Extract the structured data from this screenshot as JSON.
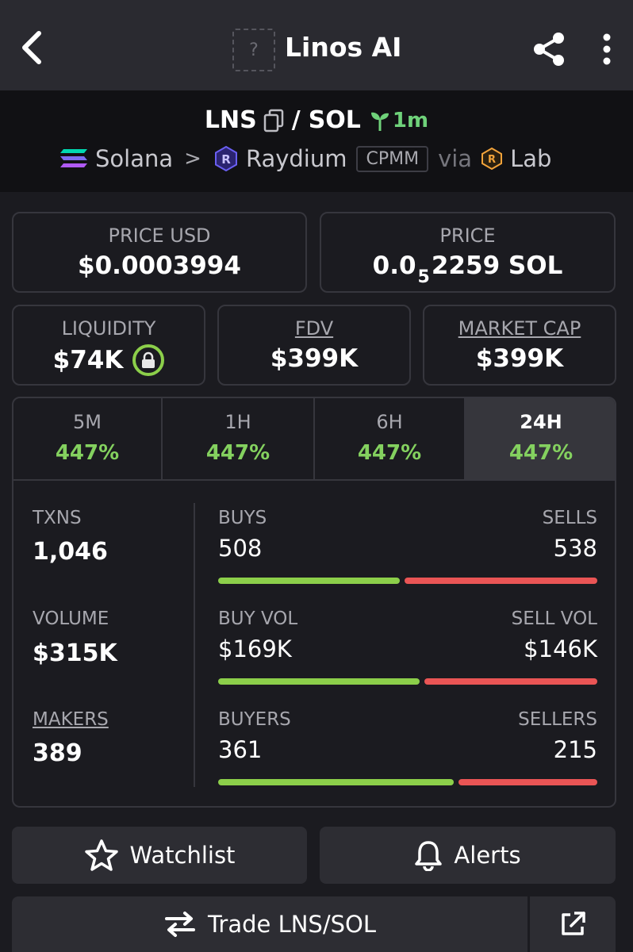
{
  "header": {
    "title": "Linos AI",
    "logo_placeholder": "?"
  },
  "pair": {
    "base": "LNS",
    "quote": "SOL",
    "separator": "/",
    "age": "1m",
    "chain": "Solana",
    "dex": "Raydium",
    "pool_type": "CPMM",
    "via_label": "via",
    "launchpad": "Lab"
  },
  "cards": {
    "price_usd": {
      "label": "PRICE USD",
      "value": "$0.0003994"
    },
    "price": {
      "label": "PRICE",
      "value_prefix": "0.0",
      "value_sub": "5",
      "value_suffix": "2259 SOL"
    },
    "liquidity": {
      "label": "LIQUIDITY",
      "value": "$74K"
    },
    "fdv": {
      "label": "FDV",
      "value": "$399K"
    },
    "market_cap": {
      "label": "MARKET CAP",
      "value": "$399K"
    }
  },
  "tabs": [
    {
      "label": "5M",
      "value": "447%"
    },
    {
      "label": "1H",
      "value": "447%"
    },
    {
      "label": "6H",
      "value": "447%"
    },
    {
      "label": "24H",
      "value": "447%"
    }
  ],
  "stats": {
    "txns": {
      "label": "TXNS",
      "value": "1,046"
    },
    "volume": {
      "label": "VOLUME",
      "value": "$315K"
    },
    "makers": {
      "label": "MAKERS",
      "value": "389"
    },
    "buys": {
      "buy_label": "BUYS",
      "sell_label": "SELLS",
      "buy_value": "508",
      "sell_value": "538",
      "buy_share": 0.486
    },
    "vol": {
      "buy_label": "BUY VOL",
      "sell_label": "SELL VOL",
      "buy_value": "$169K",
      "sell_value": "$146K",
      "buy_share": 0.537
    },
    "traders": {
      "buy_label": "BUYERS",
      "sell_label": "SELLERS",
      "buy_value": "361",
      "sell_value": "215",
      "buy_share": 0.627
    }
  },
  "actions": {
    "watchlist": "Watchlist",
    "alerts": "Alerts",
    "trade": "Trade LNS/SOL"
  },
  "colors": {
    "buy": "#8ccf4a",
    "sell": "#ea5555",
    "gain": "#84d15f"
  }
}
